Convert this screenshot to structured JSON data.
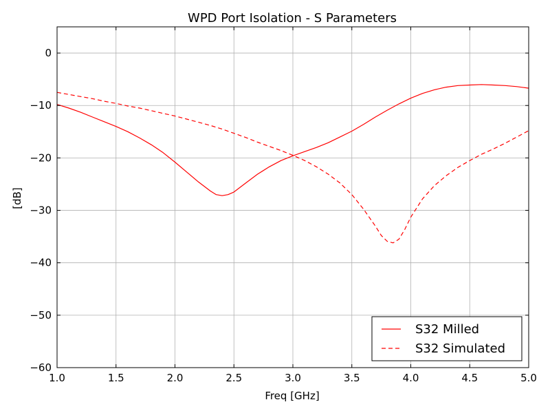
{
  "chart_data": {
    "type": "line",
    "title": "WPD Port Isolation - S Parameters",
    "xlabel": "Freq [GHz]",
    "ylabel": "[dB]",
    "xlim": [
      1.0,
      5.0
    ],
    "ylim": [
      -60,
      5
    ],
    "xticks": [
      1.0,
      1.5,
      2.0,
      2.5,
      3.0,
      3.5,
      4.0,
      4.5,
      5.0
    ],
    "xtick_labels": [
      "1.0",
      "1.5",
      "2.0",
      "2.5",
      "3.0",
      "3.5",
      "4.0",
      "4.5",
      "5.0"
    ],
    "yticks": [
      0,
      -10,
      -20,
      -30,
      -40,
      -50,
      -60
    ],
    "ytick_labels": [
      "0",
      "−10",
      "−20",
      "−30",
      "−40",
      "−50",
      "−60"
    ],
    "grid": true,
    "legend_position": "lower-right",
    "series": [
      {
        "name": "S32 Milled",
        "color": "#ff0000",
        "style": "solid",
        "x": [
          1.0,
          1.1,
          1.2,
          1.3,
          1.4,
          1.5,
          1.6,
          1.7,
          1.8,
          1.9,
          2.0,
          2.1,
          2.2,
          2.3,
          2.35,
          2.4,
          2.45,
          2.5,
          2.6,
          2.7,
          2.8,
          2.9,
          3.0,
          3.1,
          3.2,
          3.3,
          3.4,
          3.5,
          3.6,
          3.7,
          3.8,
          3.9,
          4.0,
          4.1,
          4.2,
          4.3,
          4.4,
          4.5,
          4.6,
          4.7,
          4.8,
          4.9,
          5.0
        ],
        "y": [
          -9.8,
          -10.5,
          -11.3,
          -12.2,
          -13.1,
          -14.0,
          -15.0,
          -16.2,
          -17.5,
          -19.0,
          -20.8,
          -22.7,
          -24.6,
          -26.3,
          -27.0,
          -27.2,
          -27.0,
          -26.5,
          -24.8,
          -23.1,
          -21.7,
          -20.5,
          -19.6,
          -18.8,
          -18.0,
          -17.1,
          -16.0,
          -14.9,
          -13.6,
          -12.2,
          -10.9,
          -9.7,
          -8.6,
          -7.7,
          -7.0,
          -6.5,
          -6.2,
          -6.1,
          -6.0,
          -6.1,
          -6.2,
          -6.4,
          -6.7
        ]
      },
      {
        "name": "S32 Simulated",
        "color": "#ff0000",
        "style": "dashed",
        "x": [
          1.0,
          1.1,
          1.2,
          1.3,
          1.4,
          1.5,
          1.6,
          1.7,
          1.8,
          1.9,
          2.0,
          2.1,
          2.2,
          2.3,
          2.4,
          2.5,
          2.6,
          2.7,
          2.8,
          2.9,
          3.0,
          3.1,
          3.2,
          3.3,
          3.4,
          3.5,
          3.6,
          3.7,
          3.75,
          3.8,
          3.85,
          3.9,
          3.95,
          4.0,
          4.1,
          4.2,
          4.3,
          4.4,
          4.5,
          4.6,
          4.7,
          4.8,
          4.9,
          5.0
        ],
        "y": [
          -7.5,
          -7.9,
          -8.3,
          -8.7,
          -9.2,
          -9.6,
          -10.1,
          -10.5,
          -11.0,
          -11.5,
          -12.0,
          -12.6,
          -13.2,
          -13.8,
          -14.5,
          -15.3,
          -16.1,
          -17.0,
          -17.8,
          -18.6,
          -19.5,
          -20.5,
          -21.7,
          -23.1,
          -24.8,
          -27.0,
          -29.8,
          -33.0,
          -34.8,
          -35.9,
          -36.2,
          -35.5,
          -33.6,
          -31.3,
          -27.8,
          -25.3,
          -23.4,
          -21.8,
          -20.5,
          -19.3,
          -18.3,
          -17.2,
          -16.0,
          -14.8
        ]
      }
    ]
  }
}
